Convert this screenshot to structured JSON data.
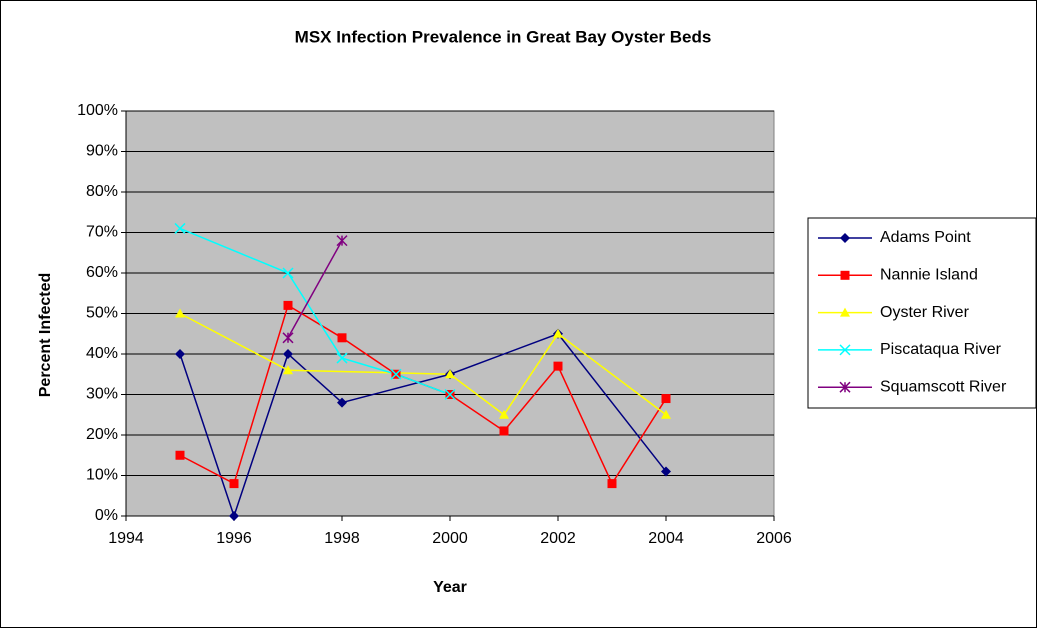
{
  "chart_data": {
    "type": "line",
    "title": "MSX Infection Prevalence in Great Bay Oyster Beds",
    "xlabel": "Year",
    "ylabel": "Percent Infected",
    "xlim": [
      1994,
      2006
    ],
    "xticks": [
      1994,
      1996,
      1998,
      2000,
      2002,
      2004,
      2006
    ],
    "ylim": [
      0,
      100
    ],
    "yticks": [
      {
        "value": 0,
        "label": "0%"
      },
      {
        "value": 10,
        "label": "10%"
      },
      {
        "value": 20,
        "label": "20%"
      },
      {
        "value": 30,
        "label": "30%"
      },
      {
        "value": 40,
        "label": "40%"
      },
      {
        "value": 50,
        "label": "50%"
      },
      {
        "value": 60,
        "label": "60%"
      },
      {
        "value": 70,
        "label": "70%"
      },
      {
        "value": 80,
        "label": "80%"
      },
      {
        "value": 90,
        "label": "90%"
      },
      {
        "value": 100,
        "label": "100%"
      }
    ],
    "grid": true,
    "legend": "right",
    "series": [
      {
        "name": "Adams Point",
        "color": "#000080",
        "marker": "diamond",
        "x": [
          1995,
          1996,
          1997,
          1998,
          2000,
          2002,
          2004
        ],
        "values": [
          40,
          0,
          40,
          28,
          35,
          45,
          11
        ]
      },
      {
        "name": "Nannie Island",
        "color": "#ff0000",
        "marker": "square",
        "x": [
          1995,
          1996,
          1997,
          1998,
          1999,
          2000,
          2001,
          2002,
          2003,
          2004
        ],
        "values": [
          15,
          8,
          52,
          44,
          35,
          30,
          21,
          37,
          8,
          29
        ]
      },
      {
        "name": "Oyster River",
        "color": "#ffff00",
        "marker": "triangle",
        "x": [
          1995,
          1997,
          2000,
          2001,
          2002,
          2004
        ],
        "values": [
          50,
          36,
          35,
          25,
          45,
          25
        ]
      },
      {
        "name": "Piscataqua River",
        "color": "#00ffff",
        "marker": "x",
        "x": [
          1995,
          1997,
          1998,
          1999,
          2000
        ],
        "values": [
          71,
          60,
          39,
          35,
          30
        ]
      },
      {
        "name": "Squamscott River",
        "color": "#800080",
        "marker": "star",
        "x": [
          1997,
          1998
        ],
        "values": [
          44,
          68
        ]
      }
    ]
  }
}
